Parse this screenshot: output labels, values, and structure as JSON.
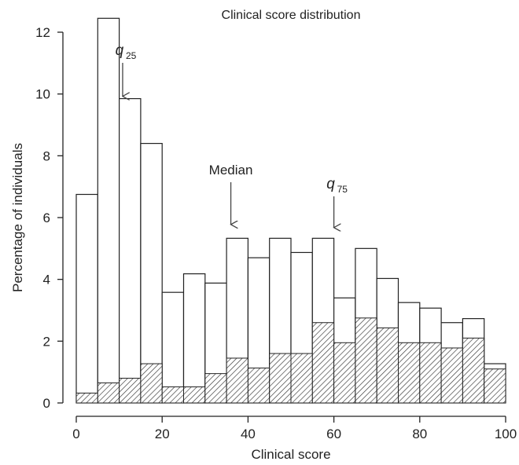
{
  "chart_data": {
    "type": "bar",
    "title": "Clinical score distribution",
    "xlabel": "Clinical score",
    "ylabel": "Percentage of individuals",
    "xlim": [
      0,
      100
    ],
    "ylim": [
      0,
      12.5
    ],
    "x_ticks": [
      0,
      20,
      40,
      60,
      80,
      100
    ],
    "y_ticks": [
      0,
      2,
      4,
      6,
      8,
      10,
      12
    ],
    "bin_width": 5,
    "bin_starts": [
      0,
      5,
      10,
      15,
      20,
      25,
      30,
      35,
      40,
      45,
      50,
      55,
      60,
      65,
      70,
      75,
      80,
      85,
      90,
      95
    ],
    "series": [
      {
        "fill": "outline",
        "values": [
          6.75,
          12.45,
          9.85,
          8.4,
          3.58,
          4.18,
          3.88,
          5.33,
          4.7,
          5.33,
          4.87,
          5.33,
          3.4,
          5.0,
          4.03,
          3.25,
          3.07,
          2.6,
          2.73,
          1.27
        ]
      },
      {
        "fill": "hatched",
        "values": [
          0.32,
          0.65,
          0.8,
          1.27,
          0.52,
          0.52,
          0.95,
          1.45,
          1.13,
          1.6,
          1.6,
          2.6,
          1.95,
          2.75,
          2.43,
          1.95,
          1.95,
          1.78,
          2.1,
          1.1
        ]
      }
    ],
    "grid": false,
    "annotations": [
      {
        "label": "q",
        "subscript": "25",
        "x": 10.8,
        "y_tip": 9.85
      },
      {
        "label": "Median",
        "subscript": "",
        "x": 36,
        "y_tip": 5.7
      },
      {
        "label": "q",
        "subscript": "75",
        "x": 60,
        "y_tip": 5.6
      }
    ]
  }
}
